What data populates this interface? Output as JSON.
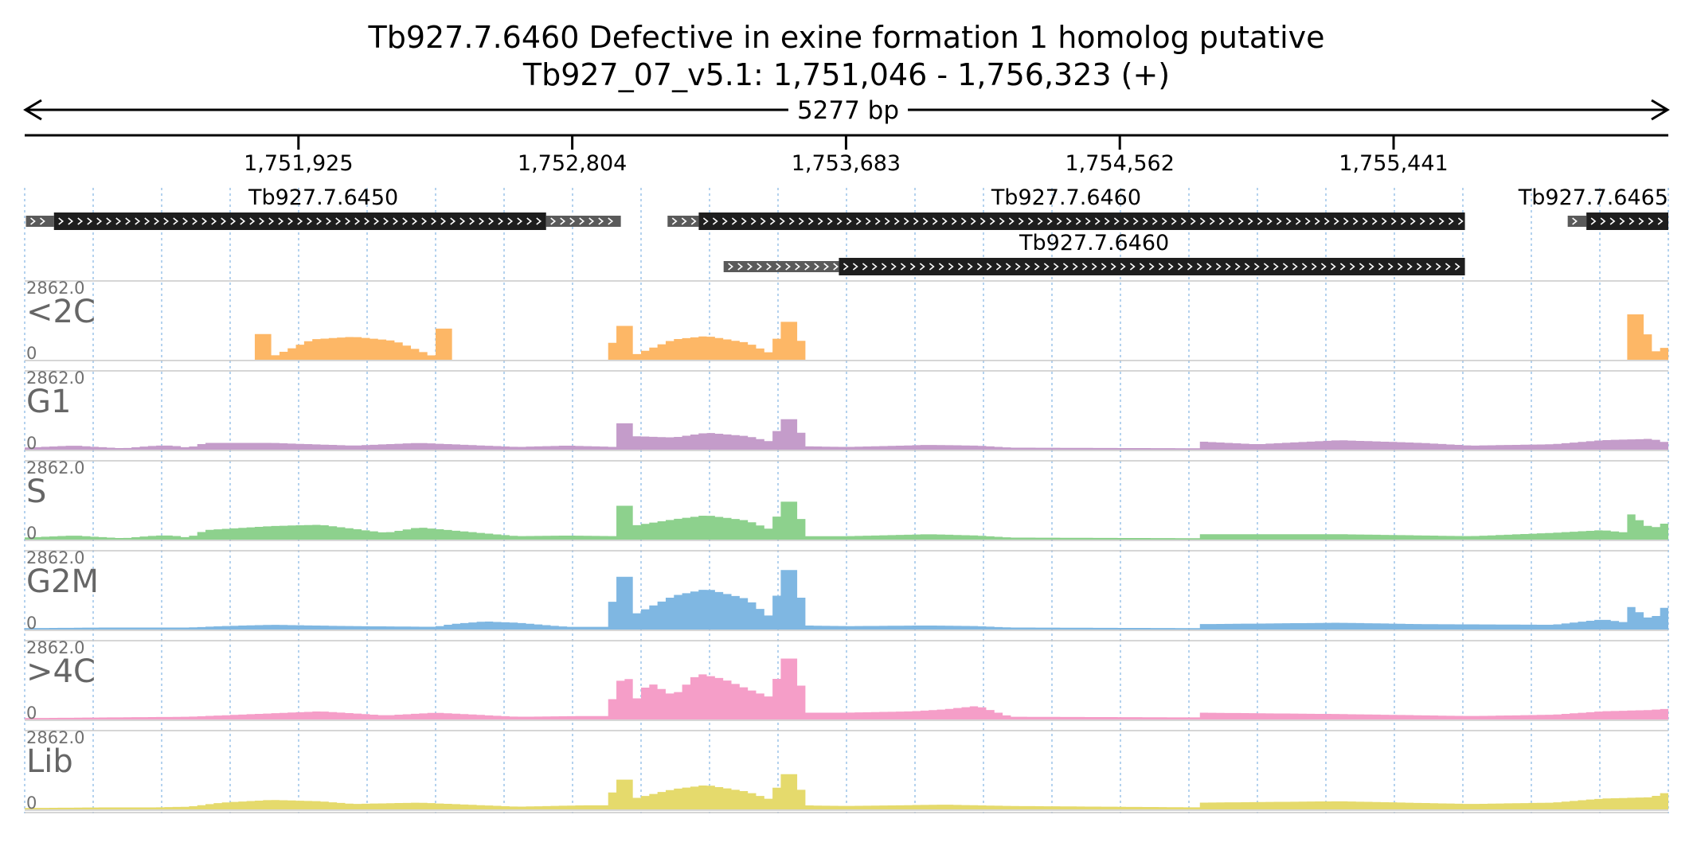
{
  "header": {
    "title": "Tb927.7.6460  Defective in exine formation 1 homolog  putative",
    "location": "Tb927_07_v5.1: 1,751,046 - 1,756,323 (+)",
    "length_label": "5277 bp"
  },
  "region": {
    "start": 1751046,
    "end": 1756323
  },
  "ruler": {
    "ticks": [
      {
        "pos": 1751925,
        "label": "1,751,925"
      },
      {
        "pos": 1752804,
        "label": "1,752,804"
      },
      {
        "pos": 1753683,
        "label": "1,753,683"
      },
      {
        "pos": 1754562,
        "label": "1,754,562"
      },
      {
        "pos": 1755441,
        "label": "1,755,441"
      }
    ]
  },
  "genes": [
    {
      "name": "Tb927.7.6450",
      "show_label": true,
      "row": 0,
      "utr5": [
        1751050,
        1751140
      ],
      "cds": [
        1751140,
        1752720
      ],
      "utr3": [
        1752720,
        1752960
      ]
    },
    {
      "name": "Tb927.7.6460",
      "show_label": true,
      "row": 0,
      "utr5": [
        1753110,
        1753210
      ],
      "cds": [
        1753210,
        1755670
      ],
      "utr3": null
    },
    {
      "name": "Tb927.7.6460",
      "show_label": true,
      "row": 1,
      "utr5": [
        1753290,
        1753660
      ],
      "cds": [
        1753660,
        1755670
      ],
      "utr3": null
    },
    {
      "name": "Tb927.7.6465",
      "show_label": true,
      "row": 0,
      "utr5": [
        1756000,
        1756060
      ],
      "cds": [
        1756060,
        1756323
      ],
      "utr3": null
    }
  ],
  "tracks_max_label": "2862.0",
  "tracks_zero_label": "0",
  "chart_data": {
    "type": "area",
    "x_unit": "bp",
    "xlim": [
      1751046,
      1756323
    ],
    "ylim": [
      0,
      2862.0
    ],
    "series": [
      {
        "name": "<2C",
        "color": "#fdb766"
      },
      {
        "name": "G1",
        "color": "#c49cca"
      },
      {
        "name": "S",
        "color": "#8dd18d"
      },
      {
        "name": "G2M",
        "color": "#7fb7e2"
      },
      {
        "name": ">4C",
        "color": "#f59ec8"
      },
      {
        "name": "Lib",
        "color": "#e5da6c"
      }
    ]
  }
}
